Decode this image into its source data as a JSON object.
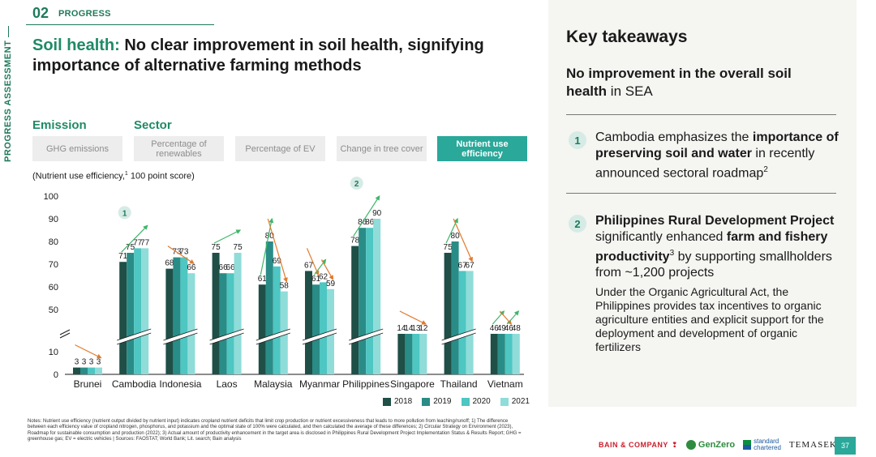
{
  "section": {
    "number": "02",
    "name": "PROGRESS",
    "side_label": "PROGRESS ASSESSMENT"
  },
  "headline": {
    "accent": "Soil health:",
    "text": " No clear improvement in soil health, signifying importance of alternative farming methods"
  },
  "categories_header": {
    "emission": "Emission",
    "sector": "Sector"
  },
  "tabs": [
    {
      "label": "GHG emissions",
      "active": false
    },
    {
      "label": "Percentage of renewables",
      "active": false
    },
    {
      "label": "Percentage of EV",
      "active": false
    },
    {
      "label": "Change in tree cover",
      "active": false
    },
    {
      "label": "Nutrient use efficiency",
      "active": true
    }
  ],
  "chart_note": {
    "label": "(Nutrient use efficiency,",
    "sup": "1",
    "unit": " 100 point score)"
  },
  "chart_data": {
    "type": "bar",
    "categories": [
      "Brunei",
      "Cambodia",
      "Indonesia",
      "Laos",
      "Malaysia",
      "Myanmar",
      "Philippines",
      "Singapore",
      "Thailand",
      "Vietnam"
    ],
    "series": [
      {
        "name": "2018",
        "values": [
          3,
          71,
          68,
          75,
          61,
          67,
          78,
          14,
          75,
          46
        ]
      },
      {
        "name": "2019",
        "values": [
          3,
          75,
          73,
          66,
          80,
          61,
          86,
          14,
          80,
          49
        ]
      },
      {
        "name": "2020",
        "values": [
          3,
          77,
          73,
          66,
          69,
          62,
          86,
          13,
          67,
          46
        ]
      },
      {
        "name": "2021",
        "values": [
          3,
          77,
          66,
          75,
          58,
          59,
          90,
          12,
          67,
          48
        ]
      }
    ],
    "colors": [
      "#1f4f47",
      "#2a8c86",
      "#4ec6c2",
      "#8fdcd9"
    ],
    "y_ticks": [
      0,
      10,
      50,
      60,
      70,
      80,
      90,
      100
    ],
    "ylim": [
      0,
      100
    ],
    "axis_break": [
      10,
      50
    ],
    "trend_arrows": [
      {
        "category": "Brunei",
        "segments": [
          {
            "from": 0,
            "to": 3,
            "direction": "down"
          }
        ]
      },
      {
        "category": "Cambodia",
        "segments": [
          {
            "from": 0,
            "to": 3,
            "direction": "up"
          }
        ]
      },
      {
        "category": "Indonesia",
        "segments": [
          {
            "from": 0,
            "to": 3,
            "direction": "down"
          }
        ]
      },
      {
        "category": "Laos",
        "segments": [
          {
            "from": 0,
            "to": 3,
            "direction": "up"
          }
        ]
      },
      {
        "category": "Malaysia",
        "segments": [
          {
            "from": 0,
            "to": 1,
            "direction": "up"
          },
          {
            "from": 1,
            "to": 3,
            "direction": "down"
          }
        ]
      },
      {
        "category": "Myanmar",
        "segments": [
          {
            "from": 0,
            "to": 1,
            "direction": "down"
          },
          {
            "from": 1,
            "to": 2,
            "direction": "up"
          },
          {
            "from": 2,
            "to": 3,
            "direction": "down"
          }
        ]
      },
      {
        "category": "Philippines",
        "segments": [
          {
            "from": 0,
            "to": 3,
            "direction": "up"
          }
        ]
      },
      {
        "category": "Singapore",
        "segments": [
          {
            "from": 0,
            "to": 3,
            "direction": "down"
          }
        ]
      },
      {
        "category": "Thailand",
        "segments": [
          {
            "from": 0,
            "to": 1,
            "direction": "up"
          },
          {
            "from": 1,
            "to": 3,
            "direction": "down"
          }
        ]
      },
      {
        "category": "Vietnam",
        "segments": [
          {
            "from": 0,
            "to": 1,
            "direction": "up"
          },
          {
            "from": 1,
            "to": 2,
            "direction": "down"
          },
          {
            "from": 2,
            "to": 3,
            "direction": "up"
          }
        ]
      }
    ],
    "callouts": [
      {
        "category": "Cambodia",
        "label": "1"
      },
      {
        "category": "Philippines",
        "label": "2"
      }
    ],
    "legend_position": "bottom-right",
    "grid": false
  },
  "legend": [
    "2018",
    "2019",
    "2020",
    "2021"
  ],
  "notes": "Notes: Nutrient use efficiency (nutrient output divided by nutrient input) indicates cropland nutrient deficits that limit crop production or nutrient excessiveness that leads to more pollution from leaching/runoff; 1) The difference between each efficiency value of cropland nitrogen, phosphorus, and potassium and the optimal state of 100% were calculated, and then calculated the average of these differences; 2) Circular Strategy on Environment (2023), Roadmap for sustainable consumption and production (2022); 3) Actual amount of productivity enhancement in the target area is disclosed in Philippines Rural Development Project Implementation Status & Results Report; GHG = greenhouse gas; EV = electric vehicles | Sources: FAOSTAT; World Bank; Lit. search; Bain analysis",
  "takeaways": {
    "title": "Key takeaways",
    "subtitle_bold_1": "No improvement in the overall soil health",
    "subtitle_rest": " in SEA",
    "items": [
      {
        "number": "1",
        "pre": "Cambodia emphasizes the ",
        "bold": "importance of preserving soil and water",
        "post": " in recently announced sectoral roadmap",
        "sup": "2"
      },
      {
        "number": "2",
        "bold_1": "Philippines Rural Development Project",
        "mid_1": " significantly enhanced ",
        "bold_2": "farm and fishery productivity",
        "sup": "3",
        "mid_2": " by supporting smallholders from ~1,200 projects",
        "body": "Under the Organic Agricultural Act, the Philippines provides tax incentives to organic agriculture entities and explicit support for the deployment and development of organic fertilizers"
      }
    ]
  },
  "footer": {
    "bain": "BAIN & COMPANY",
    "genzero": "GenZero",
    "sc_line1": "standard",
    "sc_line2": "chartered",
    "temasek": "TEMASEK",
    "page": "37"
  }
}
